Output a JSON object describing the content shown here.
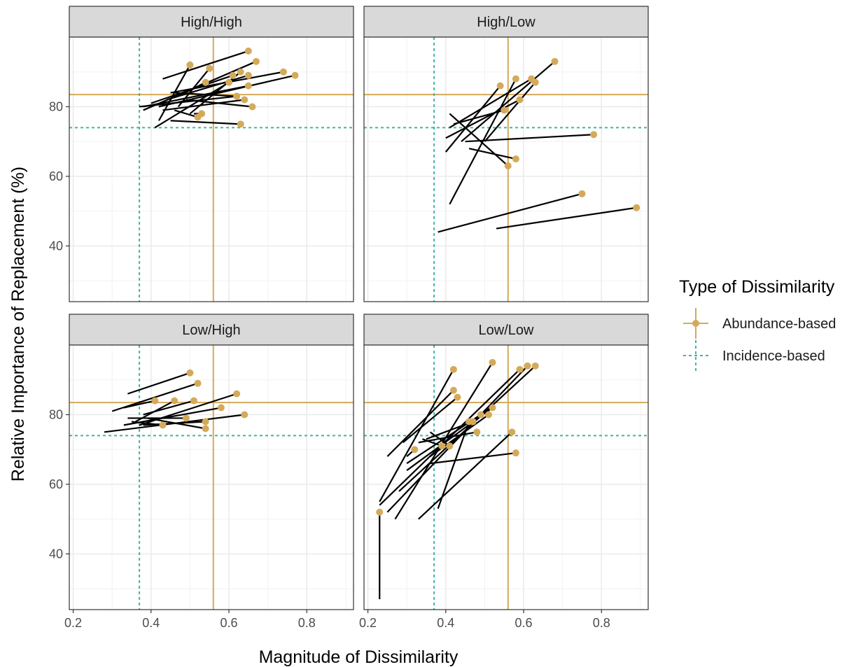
{
  "chart_data": {
    "type": "scatter",
    "xlabel": "Magnitude of Dissimilarity",
    "ylabel": "Relative Importance of Replacement (%)",
    "xlim": [
      0.19,
      0.92
    ],
    "ylim": [
      24,
      100
    ],
    "x_ticks": [
      0.2,
      0.4,
      0.6,
      0.8
    ],
    "x_tick_labels": [
      "0.2",
      "0.4",
      "0.6",
      "0.8"
    ],
    "y_ticks": [
      40,
      60,
      80
    ],
    "y_tick_labels": [
      "40",
      "60",
      "80"
    ],
    "grid": true,
    "legend": {
      "title": "Type of Dissimilarity",
      "position": "right",
      "entries": [
        {
          "label": "Abundance-based",
          "color": "#D4AA5A",
          "style": "solid"
        },
        {
          "label": "Incidence-based",
          "color": "#3FB5A3",
          "style": "dotted"
        }
      ]
    },
    "colors": {
      "abundance": "#D4AA5A",
      "incidence": "#3FB5A3",
      "segment": "#000000",
      "strip_bg": "#D9D9D9"
    },
    "reference_lines": {
      "abundance": {
        "x": 0.56,
        "y": 83.5
      },
      "incidence": {
        "x": 0.37,
        "y": 74
      }
    },
    "panels": [
      {
        "title": "High/High",
        "segments": [
          [
            0.43,
            88,
            0.65,
            96
          ],
          [
            0.42,
            76,
            0.5,
            92
          ],
          [
            0.47,
            80,
            0.55,
            91
          ],
          [
            0.38,
            79,
            0.67,
            93
          ],
          [
            0.47,
            83,
            0.54,
            87
          ],
          [
            0.41,
            74,
            0.6,
            87
          ],
          [
            0.4,
            81,
            0.61,
            89
          ],
          [
            0.5,
            78,
            0.63,
            90
          ],
          [
            0.44,
            82,
            0.65,
            89
          ],
          [
            0.45,
            84,
            0.74,
            90
          ],
          [
            0.42,
            80,
            0.77,
            89
          ],
          [
            0.46,
            84,
            0.62,
            83
          ],
          [
            0.38,
            80,
            0.65,
            86
          ],
          [
            0.43,
            79,
            0.64,
            82
          ],
          [
            0.37,
            80,
            0.62,
            83
          ],
          [
            0.49,
            82,
            0.66,
            80
          ],
          [
            0.45,
            76,
            0.63,
            75
          ],
          [
            0.51,
            78,
            0.53,
            78
          ],
          [
            0.46,
            79,
            0.52,
            77
          ]
        ]
      },
      {
        "title": "High/Low",
        "segments": [
          [
            0.38,
            44,
            0.75,
            55
          ],
          [
            0.53,
            45,
            0.89,
            51
          ],
          [
            0.41,
            52,
            0.58,
            88
          ],
          [
            0.4,
            67,
            0.54,
            86
          ],
          [
            0.41,
            74,
            0.62,
            88
          ],
          [
            0.44,
            70,
            0.68,
            93
          ],
          [
            0.5,
            70,
            0.63,
            87
          ],
          [
            0.45,
            70,
            0.78,
            72
          ],
          [
            0.41,
            78,
            0.56,
            63
          ],
          [
            0.46,
            68,
            0.58,
            65
          ],
          [
            0.4,
            71,
            0.59,
            82
          ],
          [
            0.42,
            75,
            0.55,
            79
          ]
        ]
      },
      {
        "title": "Low/High",
        "segments": [
          [
            0.34,
            86,
            0.5,
            92
          ],
          [
            0.3,
            81,
            0.52,
            89
          ],
          [
            0.33,
            82,
            0.41,
            84
          ],
          [
            0.36,
            78,
            0.46,
            84
          ],
          [
            0.37,
            77,
            0.62,
            86
          ],
          [
            0.33,
            77,
            0.58,
            82
          ],
          [
            0.28,
            75,
            0.64,
            80
          ],
          [
            0.34,
            79,
            0.49,
            79
          ],
          [
            0.38,
            77,
            0.54,
            78
          ],
          [
            0.39,
            79,
            0.54,
            76
          ],
          [
            0.35,
            78,
            0.43,
            77
          ],
          [
            0.38,
            80,
            0.51,
            84
          ]
        ]
      },
      {
        "title": "Low/Low",
        "segments": [
          [
            0.23,
            27,
            0.23,
            52
          ],
          [
            0.23,
            55,
            0.42,
            93
          ],
          [
            0.27,
            50,
            0.52,
            95
          ],
          [
            0.23,
            54,
            0.59,
            93
          ],
          [
            0.25,
            52,
            0.61,
            94
          ],
          [
            0.28,
            58,
            0.63,
            94
          ],
          [
            0.25,
            68,
            0.42,
            87
          ],
          [
            0.29,
            72,
            0.43,
            85
          ],
          [
            0.3,
            64,
            0.52,
            82
          ],
          [
            0.3,
            66,
            0.49,
            80
          ],
          [
            0.36,
            68,
            0.51,
            80
          ],
          [
            0.33,
            50,
            0.57,
            75
          ],
          [
            0.38,
            53,
            0.46,
            78
          ],
          [
            0.36,
            66,
            0.58,
            69
          ],
          [
            0.33,
            72,
            0.48,
            75
          ],
          [
            0.3,
            68,
            0.32,
            70
          ],
          [
            0.34,
            73,
            0.39,
            71
          ],
          [
            0.36,
            75,
            0.41,
            71
          ],
          [
            0.35,
            73,
            0.47,
            78
          ]
        ]
      }
    ]
  }
}
